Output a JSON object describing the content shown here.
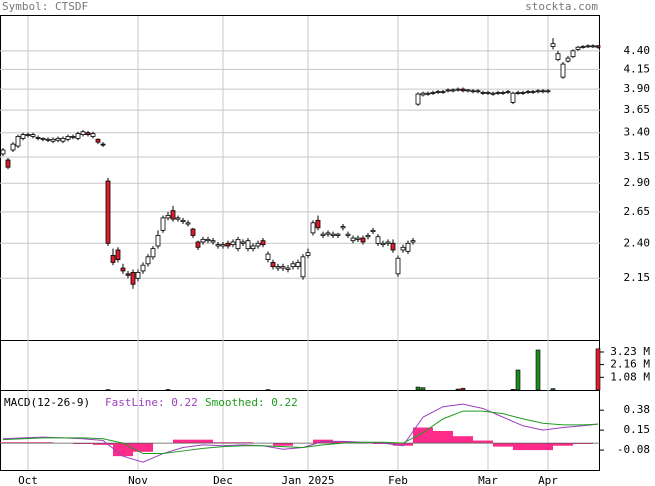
{
  "symbol": "Symbol: CTSDF",
  "source": "stockta.com",
  "chart_data": [
    {
      "type": "candlestick",
      "log_scale": true,
      "grid": true,
      "up_color": "#ffffff",
      "down_color": "#dd1f2b",
      "xlim": [
        -0.6,
        119.4
      ],
      "xticks": [
        {
          "value": 5,
          "label": "Oct"
        },
        {
          "value": 27,
          "label": "Nov"
        },
        {
          "value": 44,
          "label": "Dec"
        },
        {
          "value": 61,
          "label": "Jan 2025"
        },
        {
          "value": 79,
          "label": "Feb"
        },
        {
          "value": 97,
          "label": "Mar"
        },
        {
          "value": 109,
          "label": "Apr"
        }
      ],
      "ylim": [
        1.77,
        4.91
      ],
      "yticks": [
        {
          "value": 4.4,
          "label": "4.40"
        },
        4.15,
        {
          "value": 3.9,
          "label": "3.90"
        },
        3.65,
        {
          "value": 3.4,
          "label": "3.40"
        },
        3.15,
        {
          "value": 2.9,
          "label": "2.90"
        },
        2.65,
        {
          "value": 2.4,
          "label": "2.40"
        },
        2.15
      ],
      "open": [
        3.18,
        3.12,
        3.22,
        3.26,
        3.34,
        3.37,
        3.36,
        3.34,
        3.33,
        3.32,
        3.31,
        3.32,
        3.31,
        3.33,
        3.35,
        3.34,
        3.38,
        3.4,
        3.36,
        3.33,
        3.28,
        2.92,
        2.31,
        2.35,
        2.22,
        2.18,
        2.19,
        2.15,
        2.2,
        2.25,
        2.3,
        2.38,
        2.5,
        2.6,
        2.66,
        2.59,
        2.57,
        2.55,
        2.51,
        2.41,
        2.41,
        2.42,
        2.41,
        2.38,
        2.38,
        2.4,
        2.39,
        2.36,
        2.4,
        2.36,
        2.36,
        2.38,
        2.42,
        2.28,
        2.26,
        2.22,
        2.22,
        2.21,
        2.23,
        2.23,
        2.16,
        2.31,
        2.48,
        2.58,
        2.46,
        2.47,
        2.46,
        2.46,
        2.52,
        2.46,
        2.42,
        2.43,
        2.44,
        2.45,
        2.49,
        2.4,
        2.39,
        2.4,
        2.4,
        2.18,
        2.35,
        2.34,
        2.41,
        3.72,
        3.83,
        3.84,
        3.85,
        3.86,
        3.86,
        3.88,
        3.88,
        3.89,
        3.9,
        3.88,
        3.87,
        3.87,
        3.85,
        3.85,
        3.84,
        3.85,
        3.85,
        3.86,
        3.74,
        3.85,
        3.85,
        3.86,
        3.86,
        3.87,
        3.87,
        3.87,
        4.46,
        4.28,
        4.05,
        4.26,
        4.32,
        4.42,
        4.45,
        4.46,
        4.46,
        4.47
      ],
      "high": [
        3.24,
        3.14,
        3.3,
        3.38,
        3.4,
        3.4,
        3.4,
        3.37,
        3.35,
        3.35,
        3.35,
        3.36,
        3.36,
        3.38,
        3.38,
        3.41,
        3.43,
        3.42,
        3.41,
        3.34,
        3.3,
        2.95,
        2.36,
        2.37,
        2.25,
        2.2,
        2.21,
        2.21,
        2.26,
        2.32,
        2.38,
        2.5,
        2.62,
        2.65,
        2.7,
        2.62,
        2.6,
        2.58,
        2.52,
        2.42,
        2.45,
        2.45,
        2.44,
        2.41,
        2.41,
        2.42,
        2.43,
        2.45,
        2.43,
        2.44,
        2.4,
        2.42,
        2.44,
        2.34,
        2.28,
        2.25,
        2.25,
        2.24,
        2.27,
        2.28,
        2.32,
        2.36,
        2.58,
        2.62,
        2.49,
        2.5,
        2.49,
        2.48,
        2.55,
        2.49,
        2.46,
        2.46,
        2.46,
        2.48,
        2.52,
        2.47,
        2.42,
        2.43,
        2.43,
        2.31,
        2.39,
        2.42,
        2.44,
        3.86,
        3.87,
        3.87,
        3.88,
        3.89,
        3.89,
        3.91,
        3.91,
        3.92,
        3.92,
        3.9,
        3.9,
        3.9,
        3.88,
        3.88,
        3.87,
        3.88,
        3.88,
        3.89,
        3.87,
        3.88,
        3.88,
        3.89,
        3.89,
        3.9,
        3.9,
        3.9,
        4.58,
        4.4,
        4.25,
        4.33,
        4.42,
        4.47,
        4.48,
        4.49,
        4.49,
        4.48
      ],
      "low": [
        3.16,
        3.03,
        3.2,
        3.24,
        3.32,
        3.35,
        3.34,
        3.32,
        3.31,
        3.3,
        3.29,
        3.3,
        3.29,
        3.31,
        3.33,
        3.32,
        3.36,
        3.36,
        3.34,
        3.28,
        3.25,
        2.38,
        2.24,
        2.26,
        2.18,
        2.15,
        2.08,
        2.13,
        2.18,
        2.23,
        2.28,
        2.36,
        2.48,
        2.58,
        2.57,
        2.57,
        2.55,
        2.53,
        2.44,
        2.35,
        2.39,
        2.4,
        2.39,
        2.36,
        2.36,
        2.36,
        2.37,
        2.34,
        2.38,
        2.34,
        2.34,
        2.36,
        2.37,
        2.26,
        2.21,
        2.2,
        2.2,
        2.19,
        2.21,
        2.21,
        2.14,
        2.29,
        2.46,
        2.5,
        2.44,
        2.45,
        2.44,
        2.44,
        2.5,
        2.44,
        2.4,
        2.41,
        2.39,
        2.43,
        2.47,
        2.38,
        2.37,
        2.38,
        2.33,
        2.16,
        2.33,
        2.32,
        2.39,
        3.7,
        3.81,
        3.82,
        3.83,
        3.84,
        3.84,
        3.86,
        3.86,
        3.87,
        3.86,
        3.86,
        3.85,
        3.85,
        3.83,
        3.83,
        3.82,
        3.83,
        3.83,
        3.84,
        3.72,
        3.83,
        3.83,
        3.84,
        3.84,
        3.85,
        3.85,
        3.85,
        4.42,
        4.26,
        4.03,
        4.24,
        4.3,
        4.4,
        4.43,
        4.44,
        4.44,
        4.43
      ],
      "close": [
        3.22,
        3.05,
        3.28,
        3.36,
        3.38,
        3.38,
        3.38,
        3.35,
        3.34,
        3.33,
        3.33,
        3.34,
        3.34,
        3.36,
        3.36,
        3.39,
        3.41,
        3.38,
        3.39,
        3.3,
        3.27,
        2.4,
        2.26,
        2.28,
        2.2,
        2.17,
        2.11,
        2.19,
        2.24,
        2.3,
        2.36,
        2.46,
        2.6,
        2.62,
        2.59,
        2.6,
        2.58,
        2.56,
        2.46,
        2.37,
        2.43,
        2.43,
        2.42,
        2.39,
        2.39,
        2.38,
        2.41,
        2.43,
        2.41,
        2.42,
        2.38,
        2.4,
        2.39,
        2.32,
        2.23,
        2.23,
        2.23,
        2.22,
        2.25,
        2.26,
        2.3,
        2.33,
        2.56,
        2.52,
        2.47,
        2.48,
        2.47,
        2.47,
        2.53,
        2.47,
        2.44,
        2.44,
        2.41,
        2.46,
        2.5,
        2.45,
        2.4,
        2.41,
        2.35,
        2.29,
        2.37,
        2.4,
        2.42,
        3.84,
        3.85,
        3.85,
        3.86,
        3.87,
        3.87,
        3.89,
        3.89,
        3.9,
        3.88,
        3.89,
        3.88,
        3.88,
        3.86,
        3.86,
        3.85,
        3.86,
        3.86,
        3.87,
        3.85,
        3.86,
        3.86,
        3.87,
        3.87,
        3.88,
        3.88,
        3.88,
        4.5,
        4.36,
        4.22,
        4.3,
        4.4,
        4.45,
        4.46,
        4.47,
        4.47,
        4.45
      ]
    },
    {
      "type": "volume",
      "x": [
        21,
        33,
        53,
        83,
        84,
        91,
        92,
        102,
        103,
        107,
        110,
        119
      ],
      "values": [
        0.03,
        0.04,
        0.03,
        0.25,
        0.2,
        0.08,
        0.15,
        0.05,
        1.7,
        3.4,
        0.12,
        3.5
      ],
      "up_color": "#1e8a1e",
      "down_color": "#dd1f2b",
      "ylim": [
        0,
        4.08
      ],
      "yticks": [
        {
          "value": 3.23,
          "label": "3.23 M"
        },
        {
          "value": 2.16,
          "label": "2.16 M"
        },
        {
          "value": 1.08,
          "label": "1.08 M"
        }
      ]
    },
    {
      "type": "macd",
      "title": "MACD(12-26-9)",
      "x": [
        0,
        4,
        8,
        12,
        16,
        20,
        24,
        28,
        32,
        36,
        40,
        44,
        48,
        52,
        56,
        60,
        64,
        68,
        72,
        76,
        80,
        84,
        88,
        92,
        96,
        100,
        104,
        108,
        112,
        116,
        119
      ],
      "series": [
        {
          "name": "FastLine: 0.22",
          "color": "#9b3fbf",
          "values": [
            0.05,
            0.06,
            0.07,
            0.06,
            0.05,
            0.03,
            -0.15,
            -0.22,
            -0.12,
            -0.05,
            -0.02,
            -0.03,
            -0.02,
            -0.03,
            -0.07,
            -0.05,
            0.02,
            0.02,
            0.01,
            0.0,
            -0.03,
            0.3,
            0.42,
            0.45,
            0.4,
            0.3,
            0.2,
            0.15,
            0.18,
            0.2,
            0.22
          ]
        },
        {
          "name": "Smoothed: 0.22",
          "color": "#1f9a1f",
          "values": [
            0.04,
            0.05,
            0.06,
            0.06,
            0.06,
            0.05,
            0.0,
            -0.12,
            -0.12,
            -0.09,
            -0.06,
            -0.04,
            -0.03,
            -0.03,
            -0.04,
            -0.05,
            -0.02,
            0.0,
            0.01,
            0.01,
            0.0,
            0.12,
            0.28,
            0.37,
            0.37,
            0.34,
            0.28,
            0.23,
            0.21,
            0.21,
            0.22
          ]
        }
      ],
      "histogram": {
        "color": "#ff2a8a",
        "values": [
          0.01,
          0.01,
          0.01,
          0,
          -0.01,
          -0.02,
          -0.15,
          -0.1,
          0,
          0.04,
          0.04,
          0.01,
          0.01,
          0,
          -0.03,
          0,
          0.04,
          0.02,
          0,
          -0.01,
          -0.03,
          0.18,
          0.14,
          0.08,
          0.03,
          -0.04,
          -0.08,
          -0.08,
          -0.03,
          -0.01,
          0
        ]
      },
      "ylim": [
        -0.31,
        0.59
      ],
      "yticks": [
        0.38,
        0.15,
        -0.08
      ]
    }
  ]
}
